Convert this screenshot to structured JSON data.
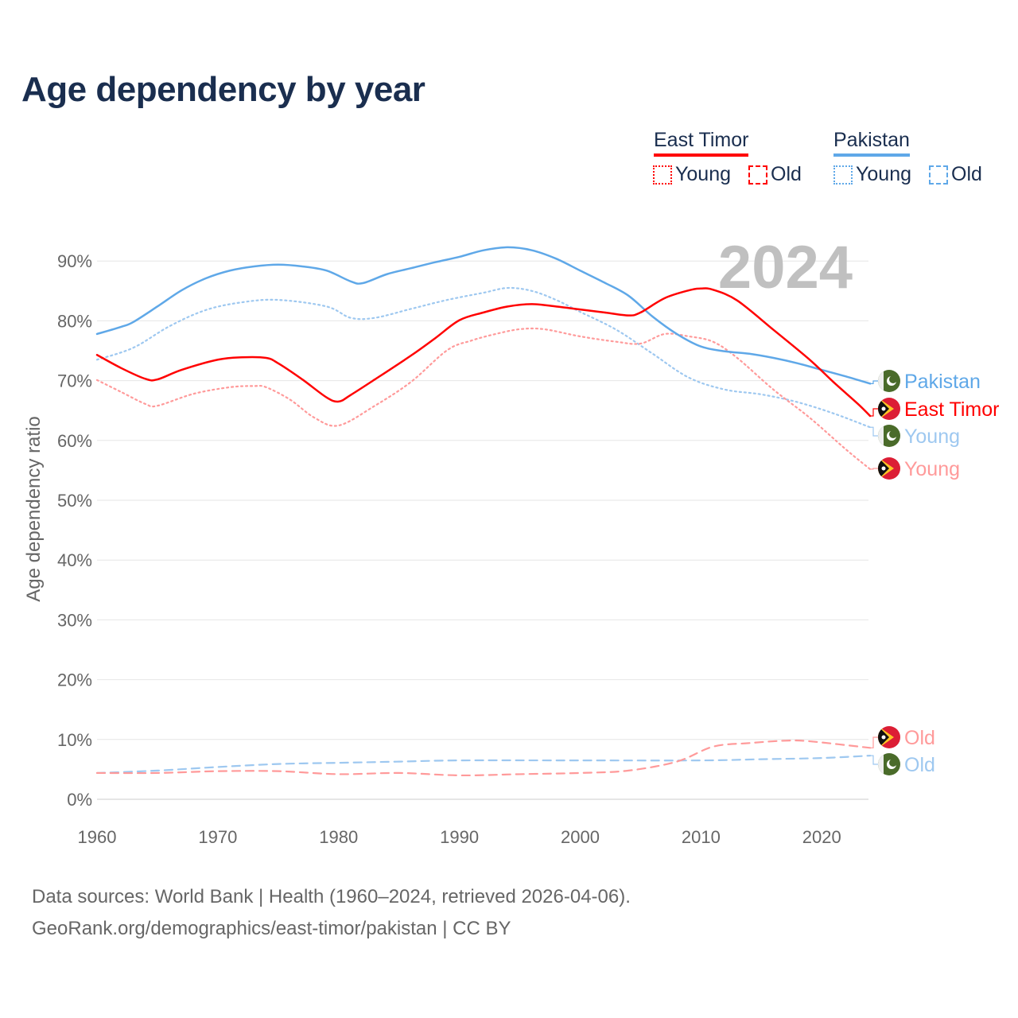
{
  "title": "Age dependency by year",
  "legend": {
    "groups": [
      {
        "country": "East Timor",
        "color": "#ff0000",
        "items": [
          "Young",
          "Old"
        ]
      },
      {
        "country": "Pakistan",
        "color": "#5fa8e8",
        "items": [
          "Young",
          "Old"
        ]
      }
    ]
  },
  "source": {
    "line1": "Data sources: World Bank | Health (1960–2024, retrieved 2026-04-06).",
    "line2": "GeoRank.org/demographics/east-timor/pakistan | CC BY"
  },
  "chart_data": {
    "type": "line",
    "title": "Age dependency by year",
    "ylabel": "Age dependency ratio",
    "xlabel": "",
    "year_watermark": "2024",
    "xlim": [
      1960,
      2024
    ],
    "ylim": [
      0,
      92
    ],
    "xticks": [
      1960,
      1970,
      1980,
      1990,
      2000,
      2010,
      2020
    ],
    "yticks": [
      0,
      10,
      20,
      30,
      40,
      50,
      60,
      70,
      80,
      90
    ],
    "ytick_labels": [
      "0%",
      "10%",
      "20%",
      "30%",
      "40%",
      "50%",
      "60%",
      "70%",
      "80%",
      "90%"
    ],
    "grid": true,
    "legend_position": "top-right",
    "series": [
      {
        "name": "Pakistan",
        "end_label": "Pakistan",
        "country": "pakistan",
        "color": "#5fa8e8",
        "style": "solid",
        "points": [
          [
            1960,
            77.8
          ],
          [
            1962,
            79
          ],
          [
            1963,
            79.8
          ],
          [
            1965,
            82.4
          ],
          [
            1967,
            85.1
          ],
          [
            1969,
            87.1
          ],
          [
            1971,
            88.4
          ],
          [
            1973,
            89.1
          ],
          [
            1975,
            89.4
          ],
          [
            1977,
            89.1
          ],
          [
            1979,
            88.4
          ],
          [
            1981,
            86.6
          ],
          [
            1982,
            86.3
          ],
          [
            1984,
            87.8
          ],
          [
            1986,
            88.8
          ],
          [
            1988,
            89.8
          ],
          [
            1990,
            90.7
          ],
          [
            1992,
            91.8
          ],
          [
            1994,
            92.3
          ],
          [
            1996,
            91.8
          ],
          [
            1998,
            90.4
          ],
          [
            2000,
            88.4
          ],
          [
            2002,
            86.4
          ],
          [
            2004,
            84.2
          ],
          [
            2006,
            80.7
          ],
          [
            2008,
            77.8
          ],
          [
            2010,
            75.7
          ],
          [
            2012,
            74.9
          ],
          [
            2014,
            74.5
          ],
          [
            2016,
            73.8
          ],
          [
            2018,
            72.9
          ],
          [
            2020,
            71.8
          ],
          [
            2022,
            70.7
          ],
          [
            2024,
            69.5
          ]
        ]
      },
      {
        "name": "East Timor",
        "end_label": "East Timor",
        "country": "east-timor",
        "color": "#ff0000",
        "style": "solid",
        "points": [
          [
            1960,
            74.3
          ],
          [
            1962,
            72.1
          ],
          [
            1964,
            70.3
          ],
          [
            1965,
            70.2
          ],
          [
            1967,
            71.8
          ],
          [
            1970,
            73.5
          ],
          [
            1972,
            73.9
          ],
          [
            1974,
            73.8
          ],
          [
            1975,
            72.9
          ],
          [
            1977,
            70.2
          ],
          [
            1979,
            67.2
          ],
          [
            1980,
            66.5
          ],
          [
            1981,
            67.6
          ],
          [
            1983,
            70.2
          ],
          [
            1986,
            74.2
          ],
          [
            1988,
            77.1
          ],
          [
            1990,
            80.1
          ],
          [
            1992,
            81.4
          ],
          [
            1994,
            82.4
          ],
          [
            1996,
            82.8
          ],
          [
            1998,
            82.4
          ],
          [
            2000,
            81.9
          ],
          [
            2002,
            81.4
          ],
          [
            2004,
            80.9
          ],
          [
            2005,
            81.4
          ],
          [
            2007,
            83.8
          ],
          [
            2009,
            85.1
          ],
          [
            2010,
            85.4
          ],
          [
            2011,
            85.2
          ],
          [
            2013,
            83.4
          ],
          [
            2016,
            78.5
          ],
          [
            2019,
            73.5
          ],
          [
            2021,
            69.7
          ],
          [
            2023,
            66.1
          ],
          [
            2024,
            64.1
          ]
        ]
      },
      {
        "name": "Pakistan Young",
        "end_label": "Young",
        "country": "pakistan",
        "color": "#9ec8f0",
        "style": "dotted",
        "points": [
          [
            1960,
            73.5
          ],
          [
            1963,
            75.5
          ],
          [
            1966,
            79.1
          ],
          [
            1969,
            81.8
          ],
          [
            1972,
            83.1
          ],
          [
            1975,
            83.5
          ],
          [
            1979,
            82.4
          ],
          [
            1981,
            80.5
          ],
          [
            1983,
            80.5
          ],
          [
            1986,
            82.0
          ],
          [
            1989,
            83.5
          ],
          [
            1992,
            84.7
          ],
          [
            1994,
            85.5
          ],
          [
            1996,
            85.0
          ],
          [
            1998,
            83.5
          ],
          [
            2000,
            81.5
          ],
          [
            2003,
            78.5
          ],
          [
            2006,
            74.5
          ],
          [
            2009,
            70.5
          ],
          [
            2012,
            68.5
          ],
          [
            2015,
            67.7
          ],
          [
            2018,
            66.4
          ],
          [
            2021,
            64.5
          ],
          [
            2024,
            62.2
          ]
        ]
      },
      {
        "name": "East Timor Young",
        "end_label": "Young",
        "country": "east-timor",
        "color": "#ff9a9a",
        "style": "dotted",
        "points": [
          [
            1960,
            70.1
          ],
          [
            1962,
            68.1
          ],
          [
            1964,
            66.1
          ],
          [
            1965,
            65.8
          ],
          [
            1968,
            67.8
          ],
          [
            1971,
            68.9
          ],
          [
            1973,
            69.1
          ],
          [
            1974,
            68.9
          ],
          [
            1976,
            66.8
          ],
          [
            1978,
            63.8
          ],
          [
            1980,
            62.5
          ],
          [
            1983,
            65.8
          ],
          [
            1986,
            69.8
          ],
          [
            1989,
            75.1
          ],
          [
            1991,
            76.7
          ],
          [
            1993,
            77.8
          ],
          [
            1995,
            78.6
          ],
          [
            1997,
            78.6
          ],
          [
            2000,
            77.4
          ],
          [
            2003,
            76.5
          ],
          [
            2005,
            76.2
          ],
          [
            2007,
            77.8
          ],
          [
            2009,
            77.4
          ],
          [
            2011,
            76.5
          ],
          [
            2013,
            73.8
          ],
          [
            2016,
            68.5
          ],
          [
            2019,
            63.8
          ],
          [
            2022,
            58.5
          ],
          [
            2024,
            55.2
          ]
        ]
      },
      {
        "name": "East Timor Old",
        "end_label": "Old",
        "country": "east-timor",
        "color": "#ff9a9a",
        "style": "dashed",
        "points": [
          [
            1960,
            4.4
          ],
          [
            1965,
            4.4
          ],
          [
            1970,
            4.7
          ],
          [
            1975,
            4.7
          ],
          [
            1980,
            4.2
          ],
          [
            1985,
            4.4
          ],
          [
            1990,
            4.0
          ],
          [
            1995,
            4.2
          ],
          [
            2000,
            4.4
          ],
          [
            2004,
            4.8
          ],
          [
            2008,
            6.3
          ],
          [
            2011,
            8.8
          ],
          [
            2014,
            9.4
          ],
          [
            2017,
            9.8
          ],
          [
            2019,
            9.7
          ],
          [
            2024,
            8.6
          ]
        ]
      },
      {
        "name": "Pakistan Old",
        "end_label": "Old",
        "country": "pakistan",
        "color": "#9ec8f0",
        "style": "dashed",
        "points": [
          [
            1960,
            4.4
          ],
          [
            1965,
            4.8
          ],
          [
            1970,
            5.4
          ],
          [
            1975,
            5.9
          ],
          [
            1980,
            6.1
          ],
          [
            1985,
            6.3
          ],
          [
            1990,
            6.5
          ],
          [
            2000,
            6.5
          ],
          [
            2010,
            6.5
          ],
          [
            2015,
            6.7
          ],
          [
            2020,
            6.9
          ],
          [
            2024,
            7.3
          ]
        ]
      }
    ]
  }
}
